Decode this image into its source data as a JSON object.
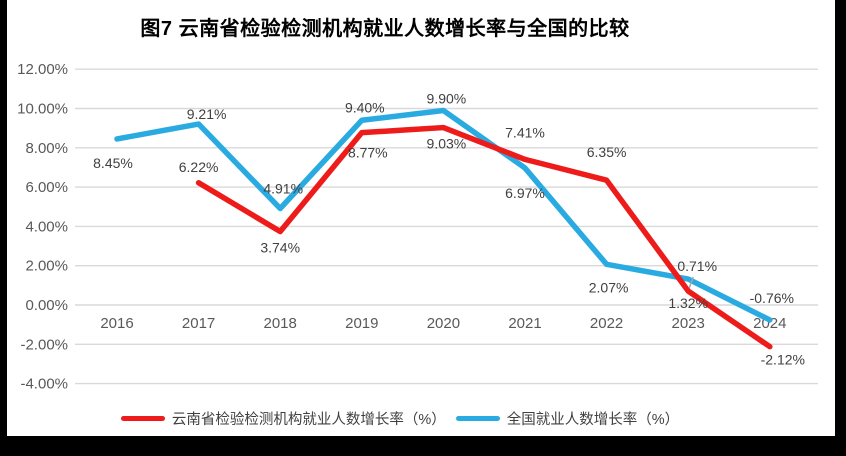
{
  "title": "图7  云南省检验检测机构就业人数增长率与全国的比较",
  "chart_data": {
    "type": "line",
    "categories": [
      "2016",
      "2017",
      "2018",
      "2019",
      "2020",
      "2021",
      "2022",
      "2023",
      "2024"
    ],
    "y_ticks": [
      "12.00%",
      "10.00%",
      "8.00%",
      "6.00%",
      "4.00%",
      "2.00%",
      "0.00%",
      "-2.00%",
      "-4.00%"
    ],
    "y_tick_values": [
      12,
      10,
      8,
      6,
      4,
      2,
      0,
      -2,
      -4
    ],
    "ylim": [
      -4,
      12
    ],
    "grid": true,
    "legend_position": "bottom",
    "colors": {
      "gridline": "#d9d9d9",
      "axis_text": "#595959",
      "data_label_text": "#404040",
      "leader_line": "#a6a6a6"
    },
    "series": [
      {
        "name": "云南省检验检测机构就业人数增长率（%）",
        "color": "#ed1c1a",
        "values": [
          null,
          6.22,
          3.74,
          8.77,
          9.03,
          7.41,
          6.35,
          0.71,
          -2.12
        ],
        "point_labels": [
          "",
          "6.22%",
          "3.74%",
          "8.77%",
          "9.03%",
          "7.41%",
          "6.35%",
          "0.71%",
          "-2.12%"
        ],
        "label_offsets": [
          [
            0,
            0
          ],
          [
            0,
            -16
          ],
          [
            0,
            16
          ],
          [
            6,
            20
          ],
          [
            3,
            16
          ],
          [
            0,
            -27
          ],
          [
            0,
            -28
          ],
          [
            9,
            -25
          ],
          [
            13,
            13
          ]
        ],
        "leader_at": 7
      },
      {
        "name": "全国就业人数增长率（%）",
        "color": "#29abe2",
        "values": [
          8.45,
          9.21,
          4.91,
          9.4,
          9.9,
          6.97,
          2.07,
          1.32,
          -0.76
        ],
        "point_labels": [
          "8.45%",
          "9.21%",
          "4.91%",
          "9.40%",
          "9.90%",
          "6.97%",
          "2.07%",
          "1.32%",
          "-0.76%"
        ],
        "label_offsets": [
          [
            -4,
            24
          ],
          [
            8,
            -10
          ],
          [
            3,
            -20
          ],
          [
            3,
            -13
          ],
          [
            3,
            -12
          ],
          [
            0,
            25
          ],
          [
            2,
            23
          ],
          [
            0,
            24
          ],
          [
            2,
            -22
          ]
        ]
      }
    ]
  }
}
